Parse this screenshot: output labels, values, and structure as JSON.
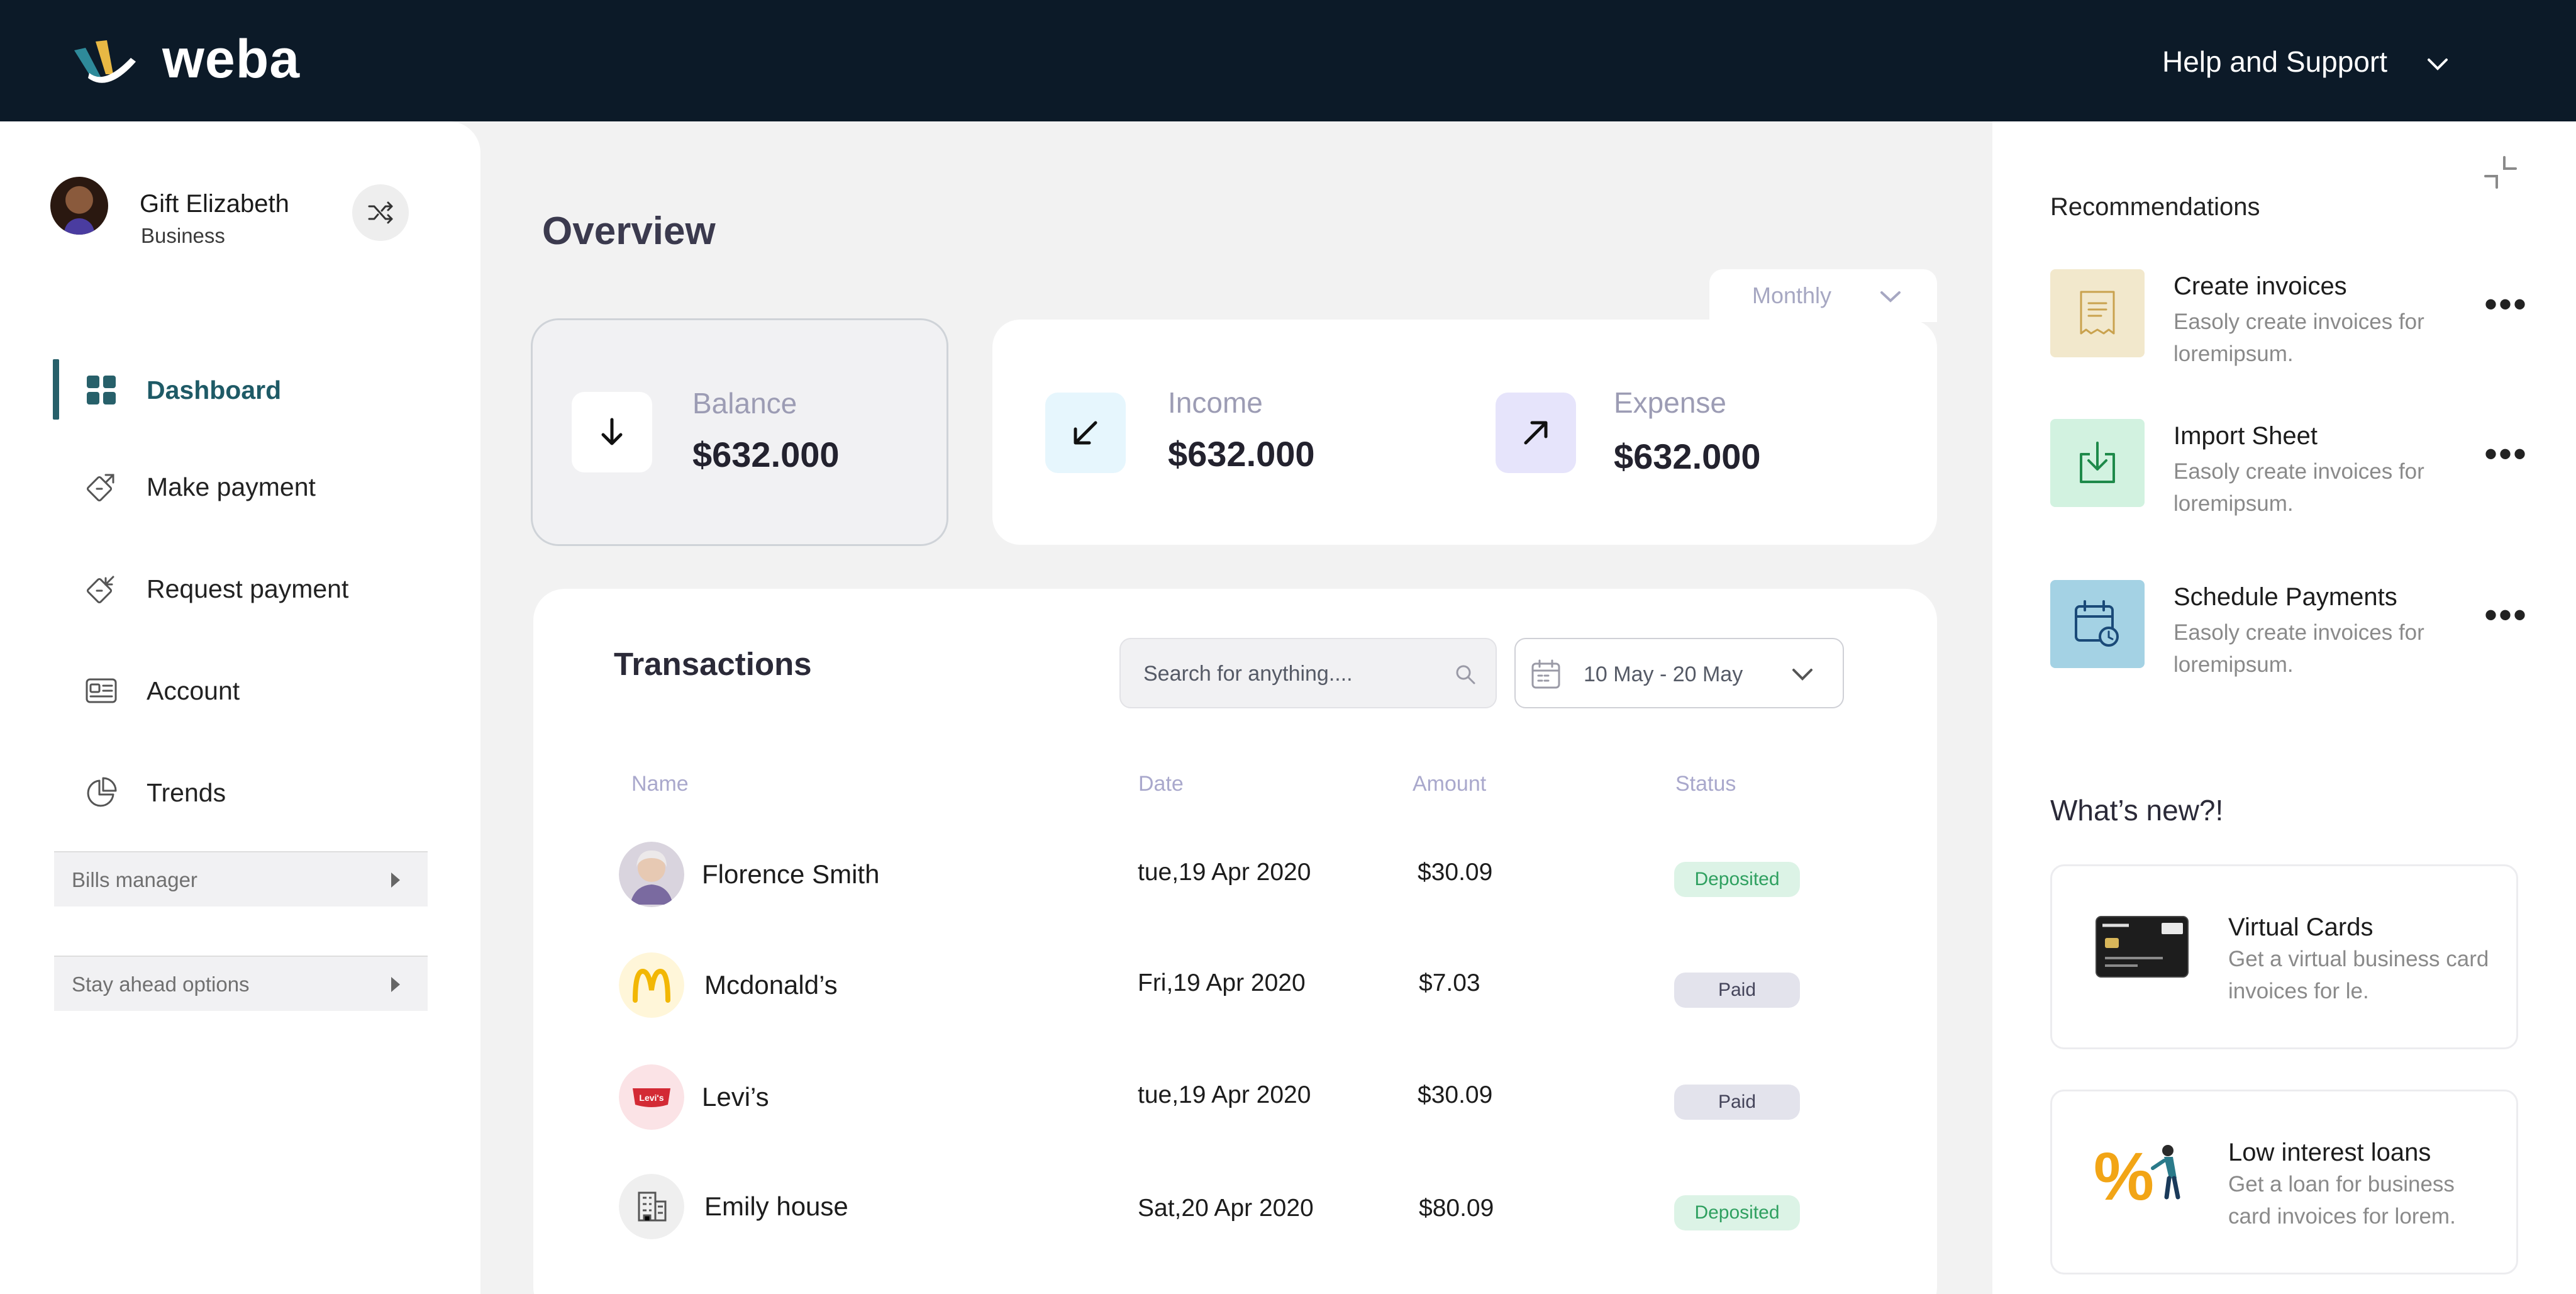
{
  "brand": {
    "name": "weba"
  },
  "header": {
    "help_label": "Help and Support"
  },
  "user": {
    "name": "Gift Elizabeth",
    "role": "Business"
  },
  "sidebar": {
    "items": [
      {
        "label": "Dashboard",
        "icon": "grid-icon",
        "active": true
      },
      {
        "label": "Make payment",
        "icon": "send-payment-icon"
      },
      {
        "label": "Request payment",
        "icon": "request-payment-icon"
      },
      {
        "label": "Account",
        "icon": "id-card-icon"
      },
      {
        "label": "Trends",
        "icon": "pie-chart-icon"
      }
    ],
    "collapsibles": [
      "Bills manager",
      "Stay ahead options"
    ]
  },
  "main": {
    "title": "Overview",
    "period": "Monthly",
    "stats": {
      "balance": {
        "label": "Balance",
        "value": "$632.000"
      },
      "income": {
        "label": "Income",
        "value": "$632.000"
      },
      "expense": {
        "label": "Expense",
        "value": "$632.000"
      }
    }
  },
  "transactions": {
    "title": "Transactions",
    "search_placeholder": "Search for anything....",
    "date_range": "10 May - 20 May",
    "columns": [
      "Name",
      "Date",
      "Amount",
      "Status"
    ],
    "rows": [
      {
        "name": "Florence Smith",
        "date": "tue,19 Apr 2020",
        "amount": "$30.09",
        "status": "Deposited"
      },
      {
        "name": "Mcdonald’s",
        "date": "Fri,19 Apr 2020",
        "amount": "$7.03",
        "status": "Paid"
      },
      {
        "name": "Levi’s",
        "date": "tue,19 Apr 2020",
        "amount": "$30.09",
        "status": "Paid"
      },
      {
        "name": "Emily house",
        "date": "Sat,20 Apr 2020",
        "amount": "$80.09",
        "status": "Deposited"
      }
    ]
  },
  "recommendations": {
    "title": "Recommendations",
    "items": [
      {
        "title": "Create invoices",
        "desc": "Easoly create invoices for loremipsum.",
        "color": "#f2e8cc"
      },
      {
        "title": "Import Sheet",
        "desc": "Easoly create invoices for loremipsum.",
        "color": "#d2f2e0"
      },
      {
        "title": "Schedule Payments",
        "desc": "Easoly create invoices for loremipsum.",
        "color": "#a4d2e4"
      }
    ]
  },
  "whats_new": {
    "title": "What’s new?!",
    "items": [
      {
        "title": "Virtual Cards",
        "desc": "Get a virtual business card invoices for le."
      },
      {
        "title": "Low interest loans",
        "desc": "Get a loan for  business card invoices for lorem."
      }
    ]
  },
  "colors": {
    "topbar": "#0c1a28",
    "accent": "#27606a",
    "deposited_bg": "#dcf3e6",
    "deposited_text": "#2fa060",
    "paid_bg": "#e3e3ec"
  }
}
